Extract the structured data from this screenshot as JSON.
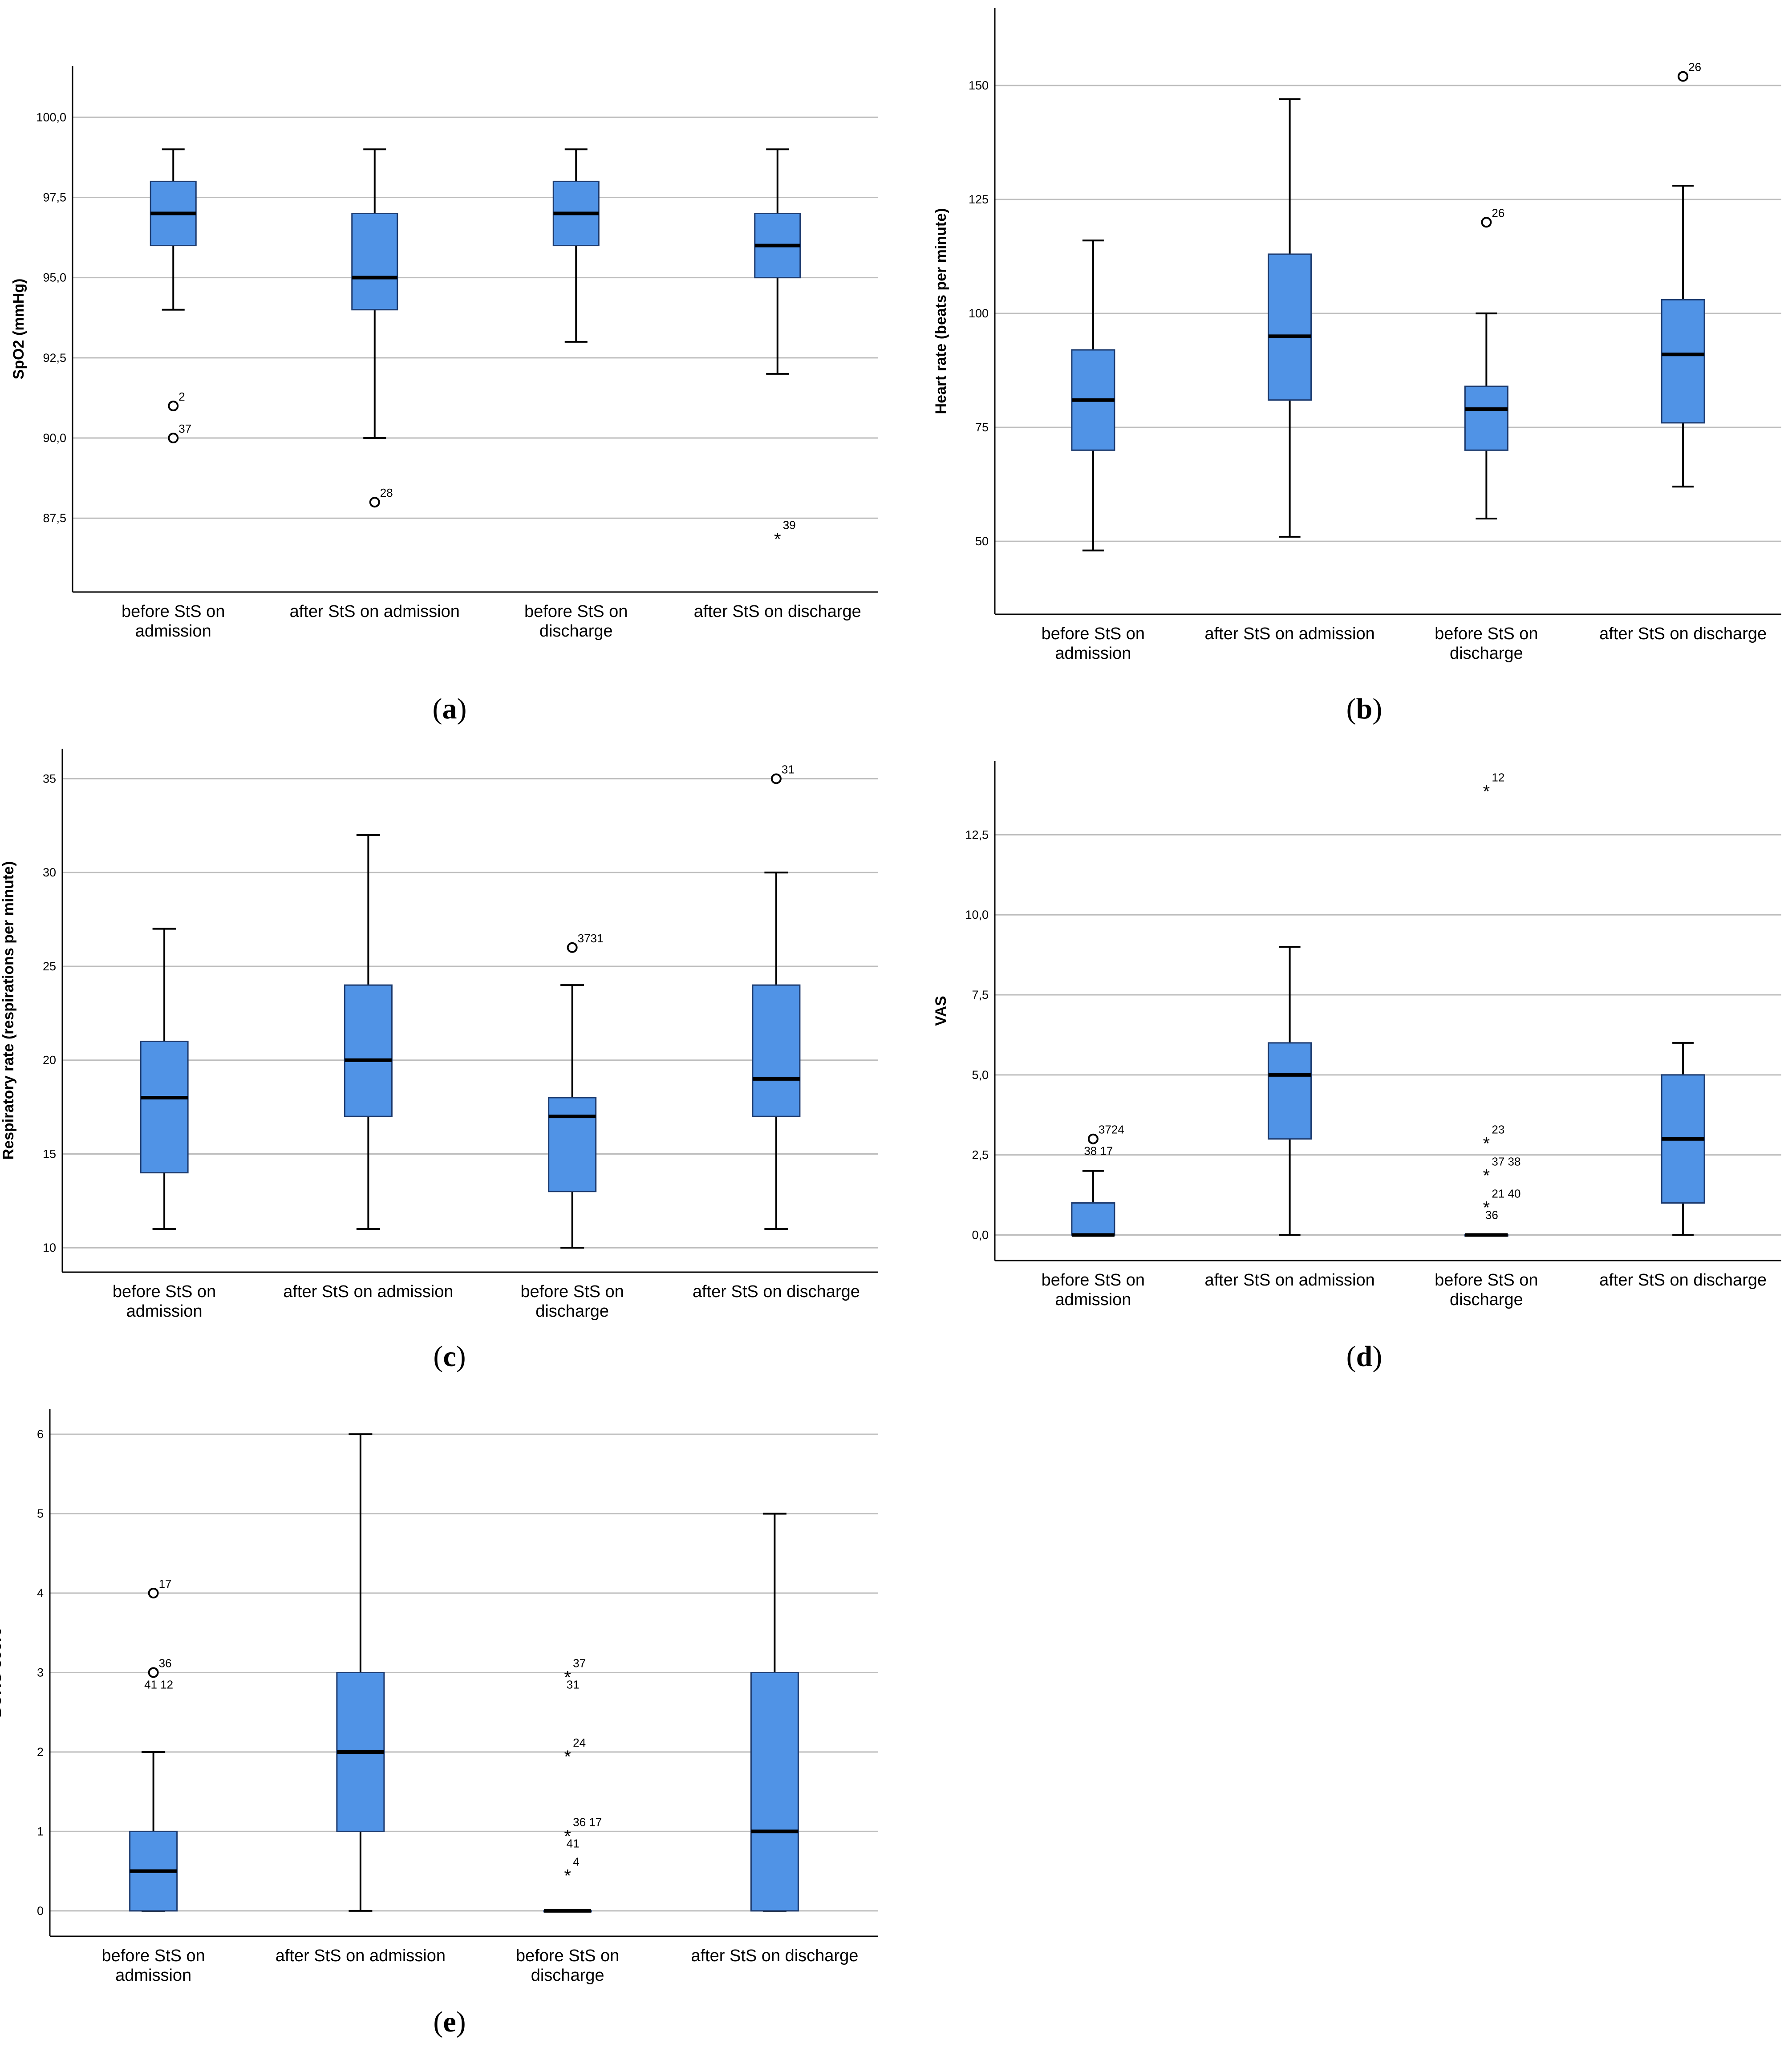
{
  "colors": {
    "box_fill": "#5093e6",
    "box_stroke": "#1c3a6e",
    "grid": "#bdbdbd"
  },
  "chart_data": [
    {
      "type": "boxplot",
      "panel_label": "a",
      "ylabel": "SpO2 (mmHg)",
      "ylim": [
        85.2,
        101.6
      ],
      "y_ticks": [
        87.5,
        90.0,
        92.5,
        95.0,
        97.5,
        100.0
      ],
      "y_tick_labels": [
        "87,5",
        "90,0",
        "92,5",
        "95,0",
        "97,5",
        "100,0"
      ],
      "categories": [
        "before StS on admission",
        "after StS on admission",
        "before StS on discharge",
        "after StS on discharge"
      ],
      "category_labels": [
        [
          "before StS on",
          "admission"
        ],
        [
          "after StS on admission"
        ],
        [
          "before StS on",
          "discharge"
        ],
        [
          "after StS on discharge"
        ]
      ],
      "boxes": [
        {
          "min": 94,
          "q1": 96,
          "median": 97,
          "q3": 98,
          "max": 99
        },
        {
          "min": 90,
          "q1": 94,
          "median": 95,
          "q3": 97,
          "max": 99
        },
        {
          "min": 93,
          "q1": 96,
          "median": 97,
          "q3": 98,
          "max": 99
        },
        {
          "min": 92,
          "q1": 95,
          "median": 96,
          "q3": 97,
          "max": 99
        }
      ],
      "outliers": [
        {
          "category": 0,
          "value": 91,
          "kind": "circle",
          "label": "2"
        },
        {
          "category": 0,
          "value": 90,
          "kind": "circle",
          "label": "37"
        },
        {
          "category": 1,
          "value": 88,
          "kind": "circle",
          "label": "28"
        },
        {
          "category": 3,
          "value": 87,
          "kind": "star",
          "label": "39"
        }
      ]
    },
    {
      "type": "boxplot",
      "panel_label": "b",
      "ylabel": "Heart rate (beats per minute)",
      "ylim": [
        34,
        167
      ],
      "y_ticks": [
        50,
        75,
        100,
        125,
        150
      ],
      "y_tick_labels": [
        "50",
        "75",
        "100",
        "125",
        "150"
      ],
      "categories": [
        "before StS on admission",
        "after StS on admission",
        "before StS on discharge",
        "after StS on discharge"
      ],
      "category_labels": [
        [
          "before StS on",
          "admission"
        ],
        [
          "after StS on admission"
        ],
        [
          "before StS on",
          "discharge"
        ],
        [
          "after StS on discharge"
        ]
      ],
      "boxes": [
        {
          "min": 48,
          "q1": 70,
          "median": 81,
          "q3": 92,
          "max": 116
        },
        {
          "min": 51,
          "q1": 81,
          "median": 95,
          "q3": 113,
          "max": 147
        },
        {
          "min": 55,
          "q1": 70,
          "median": 79,
          "q3": 84,
          "max": 100
        },
        {
          "min": 62,
          "q1": 76,
          "median": 91,
          "q3": 103,
          "max": 128
        }
      ],
      "outliers": [
        {
          "category": 2,
          "value": 120,
          "kind": "circle",
          "label": "26"
        },
        {
          "category": 3,
          "value": 152,
          "kind": "circle",
          "label": "26"
        }
      ]
    },
    {
      "type": "boxplot",
      "panel_label": "c",
      "ylabel": "Respiratory rate (respirations per minute)",
      "ylim": [
        8.7,
        36.6
      ],
      "y_ticks": [
        10,
        15,
        20,
        25,
        30,
        35
      ],
      "y_tick_labels": [
        "10",
        "15",
        "20",
        "25",
        "30",
        "35"
      ],
      "categories": [
        "before StS on admission",
        "after StS on admission",
        "before StS on discharge",
        "after StS on discharge"
      ],
      "category_labels": [
        [
          "before StS on",
          "admission"
        ],
        [
          "after StS on admission"
        ],
        [
          "before StS on",
          "discharge"
        ],
        [
          "after StS on discharge"
        ]
      ],
      "boxes": [
        {
          "min": 11,
          "q1": 14,
          "median": 18,
          "q3": 21,
          "max": 27
        },
        {
          "min": 11,
          "q1": 17,
          "median": 20,
          "q3": 24,
          "max": 32
        },
        {
          "min": 10,
          "q1": 13,
          "median": 17,
          "q3": 18,
          "max": 24
        },
        {
          "min": 11,
          "q1": 17,
          "median": 19,
          "q3": 24,
          "max": 30
        }
      ],
      "outliers": [
        {
          "category": 2,
          "value": 26,
          "kind": "circle",
          "label": "3731"
        },
        {
          "category": 3,
          "value": 35,
          "kind": "circle",
          "label": "31"
        }
      ]
    },
    {
      "type": "boxplot",
      "panel_label": "d",
      "ylabel": "VAS",
      "ylim": [
        -0.8,
        14.8
      ],
      "y_ticks": [
        0.0,
        2.5,
        5.0,
        7.5,
        10.0,
        12.5
      ],
      "y_tick_labels": [
        "0,0",
        "2,5",
        "5,0",
        "7,5",
        "10,0",
        "12,5"
      ],
      "categories": [
        "before StS on admission",
        "after StS on admission",
        "before StS on discharge",
        "after StS on discharge"
      ],
      "category_labels": [
        [
          "before StS on",
          "admission"
        ],
        [
          "after StS on admission"
        ],
        [
          "before StS on",
          "discharge"
        ],
        [
          "after StS on discharge"
        ]
      ],
      "boxes": [
        {
          "min": 0,
          "q1": 0,
          "median": 0,
          "q3": 1,
          "max": 2
        },
        {
          "min": 0,
          "q1": 3,
          "median": 5,
          "q3": 6,
          "max": 9
        },
        {
          "min": 0,
          "q1": 0,
          "median": 0,
          "q3": 0,
          "max": 0
        },
        {
          "min": 0,
          "q1": 1,
          "median": 3,
          "q3": 5,
          "max": 6
        }
      ],
      "outliers": [
        {
          "category": 0,
          "value": 3,
          "kind": "circle",
          "label": "3724",
          "label2": "38 17"
        },
        {
          "category": 2,
          "value": 14,
          "kind": "star",
          "label": "12"
        },
        {
          "category": 2,
          "value": 3,
          "kind": "star",
          "label": "23"
        },
        {
          "category": 2,
          "value": 2,
          "kind": "star",
          "label": "37 38"
        },
        {
          "category": 2,
          "value": 1,
          "kind": "star",
          "label": "21 40",
          "label2": "36"
        }
      ]
    },
    {
      "type": "boxplot",
      "panel_label": "e",
      "ylabel": "BORG score",
      "ylim": [
        -0.32,
        6.32
      ],
      "y_ticks": [
        0,
        1,
        2,
        3,
        4,
        5,
        6
      ],
      "y_tick_labels": [
        "0",
        "1",
        "2",
        "3",
        "4",
        "5",
        "6"
      ],
      "categories": [
        "before StS on admission",
        "after StS on admission",
        "before StS on discharge",
        "after StS on discharge"
      ],
      "category_labels": [
        [
          "before StS on",
          "admission"
        ],
        [
          "after StS on admission"
        ],
        [
          "before StS on",
          "discharge"
        ],
        [
          "after StS on discharge"
        ]
      ],
      "boxes": [
        {
          "min": 0,
          "q1": 0,
          "median": 0.5,
          "q3": 1,
          "max": 2
        },
        {
          "min": 0,
          "q1": 1,
          "median": 2,
          "q3": 3,
          "max": 6
        },
        {
          "min": 0,
          "q1": 0,
          "median": 0,
          "q3": 0,
          "max": 0
        },
        {
          "min": 0,
          "q1": 0,
          "median": 1,
          "q3": 3,
          "max": 5
        }
      ],
      "outliers": [
        {
          "category": 0,
          "value": 4,
          "kind": "circle",
          "label": "17"
        },
        {
          "category": 0,
          "value": 3,
          "kind": "circle",
          "label": "36",
          "label2": "41  12"
        },
        {
          "category": 2,
          "value": 3,
          "kind": "star",
          "label": "37",
          "label2": "31"
        },
        {
          "category": 2,
          "value": 2,
          "kind": "star",
          "label": "24"
        },
        {
          "category": 2,
          "value": 1,
          "kind": "star",
          "label": "36  17",
          "label2": "41"
        },
        {
          "category": 2,
          "value": 0.5,
          "kind": "star",
          "label": "4"
        }
      ]
    }
  ]
}
